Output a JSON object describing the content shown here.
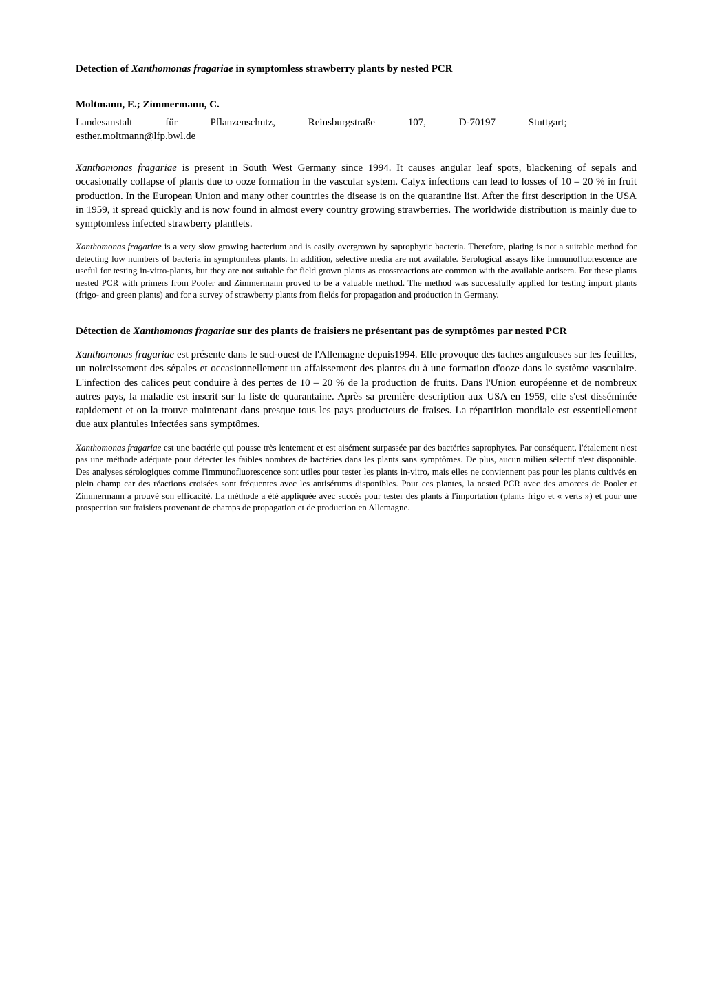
{
  "title_en_prefix": "Detection of ",
  "title_en_italic": "Xanthomonas fragariae",
  "title_en_suffix": " in symptomless strawberry plants by nested PCR",
  "authors": "Moltmann, E.; Zimmermann, C.",
  "affiliation_line1": "Landesanstalt für Pflanzenschutz, Reinsburgstraße 107, D-70197 Stuttgart;",
  "affiliation_line2": "esther.moltmann@lfp.bwl.de",
  "abstract_en_p1_italic": "Xanthomonas fragariae ",
  "abstract_en_p1": " is present in South West Germany since 1994. It causes angular leaf spots, blackening of sepals and occasionally collapse of plants due to ooze formation in the vascular system. Calyx infections can lead to losses of 10 – 20 % in fruit production. In the European Union and many other countries the disease is on the quarantine list. After the first description in the USA in 1959, it spread quickly and is now found in almost every country growing strawberries. The worldwide distribution is mainly due to symptomless infected strawberry plantlets.",
  "abstract_en_p2_italic": "Xanthomonas fragariae",
  "abstract_en_p2": " is a very slow growing bacterium and is easily overgrown by saprophytic bacteria. Therefore, plating is not a suitable method for detecting low numbers of bacteria in symptomless plants. In addition, selective media are not available. Serological assays like immunofluorescence are useful for testing in-vitro-plants, but they are not suitable for field grown plants as crossreactions are common with the available antisera. For these plants nested PCR with primers from Pooler and Zimmermann proved to be a valuable method. The method was successfully applied for testing import plants (frigo- and green plants) and for a survey of strawberry plants from fields for propagation and production in Germany.",
  "title_fr_prefix": "Détection de ",
  "title_fr_italic": "Xanthomonas fragariae",
  "title_fr_suffix": " sur des plants de fraisiers ne présentant pas de symptômes par nested PCR",
  "abstract_fr_p1_italic": "Xanthomonas fragariae",
  "abstract_fr_p1": " est présente dans le sud-ouest de l'Allemagne depuis1994. Elle provoque des taches anguleuses sur les feuilles, un noircissement des sépales et occasionnellement un affaissement des plantes du à une formation d'ooze dans le système vasculaire. L'infection des calices peut conduire à des pertes de 10 – 20 % de la production de fruits. Dans l'Union européenne et de nombreux autres pays, la maladie est inscrit sur la liste de quarantaine. Après sa première description aux USA en 1959, elle s'est disséminée rapidement et on la trouve maintenant dans presque tous les pays producteurs de fraises. La répartition mondiale est essentiellement due aux plantules infectées sans symptômes.",
  "abstract_fr_p2_italic": "Xanthomonas fragariae",
  "abstract_fr_p2": " est une bactérie qui pousse très lentement et est aisément surpassée par des bactéries saprophytes. Par conséquent, l'étalement n'est pas une méthode adéquate pour détecter les faibles nombres de bactéries dans les plants sans symptômes. De plus, aucun milieu sélectif n'est disponible. Des analyses sérologiques comme l'immunofluorescence sont utiles pour tester les plants in-vitro, mais elles ne conviennent pas pour les plants cultivés en plein champ car des réactions croisées sont fréquentes avec les antisérums disponibles. Pour ces plantes, la nested PCR avec des amorces de Pooler et Zimmermann a prouvé son efficacité. La méthode a été appliquée avec succès pour tester des plants à l'importation (plants frigo et « verts ») et pour une prospection sur fraisiers provenant de champs de propagation et de production en Allemagne."
}
